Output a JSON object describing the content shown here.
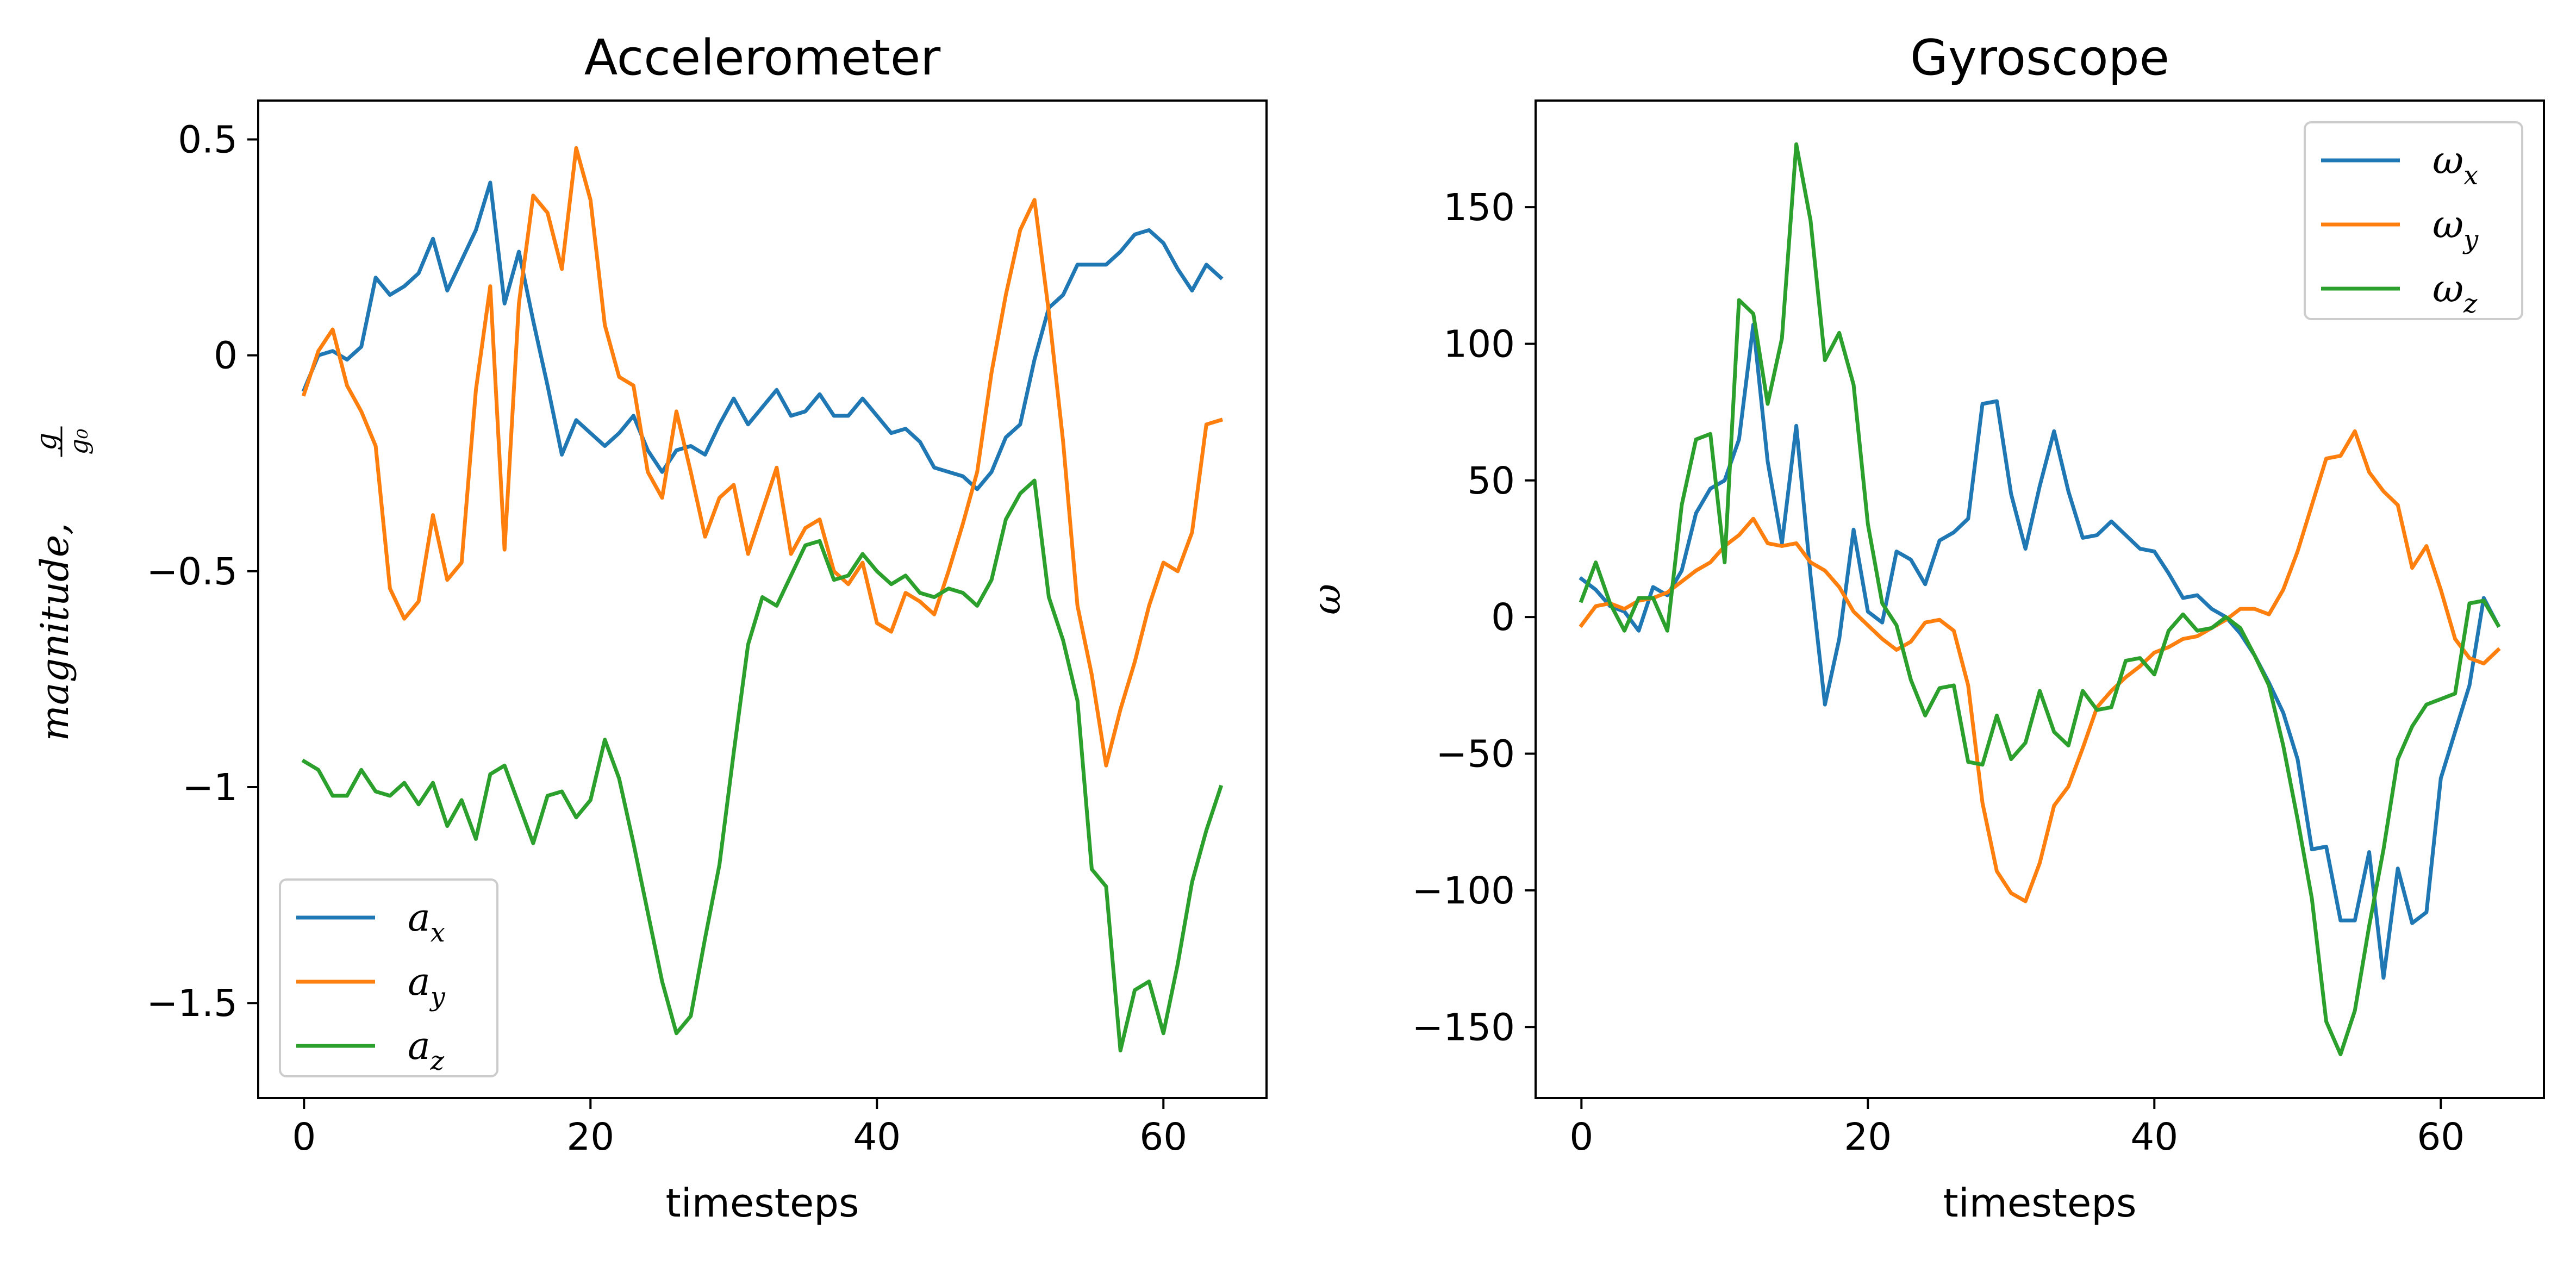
{
  "chart_data": [
    {
      "type": "line",
      "title": "Accelerometer",
      "xlabel": "timesteps",
      "ylabel": "magnitude, g/g₀",
      "xlim": [
        -3.2,
        67.2
      ],
      "ylim": [
        -1.72,
        0.59
      ],
      "xticks": [
        0,
        20,
        40,
        60
      ],
      "yticks": [
        0.5,
        0.0,
        -0.5,
        -1.0,
        -1.5
      ],
      "grid": false,
      "legend_position": "lower-left",
      "series": [
        {
          "name": "a_x",
          "name_base": "a",
          "name_sub": "x",
          "color": "#1f77b4",
          "values": [
            -0.08,
            0.0,
            0.01,
            -0.01,
            0.02,
            0.18,
            0.14,
            0.16,
            0.19,
            0.27,
            0.15,
            0.22,
            0.29,
            0.4,
            0.12,
            0.24,
            0.08,
            -0.07,
            -0.23,
            -0.15,
            -0.18,
            -0.21,
            -0.18,
            -0.14,
            -0.22,
            -0.27,
            -0.22,
            -0.21,
            -0.23,
            -0.16,
            -0.1,
            -0.16,
            -0.12,
            -0.08,
            -0.14,
            -0.13,
            -0.09,
            -0.14,
            -0.14,
            -0.1,
            -0.14,
            -0.18,
            -0.17,
            -0.2,
            -0.26,
            -0.27,
            -0.28,
            -0.31,
            -0.27,
            -0.19,
            -0.16,
            -0.01,
            0.11,
            0.14,
            0.21,
            0.21,
            0.21,
            0.24,
            0.28,
            0.29,
            0.26,
            0.2,
            0.15,
            0.21,
            0.18
          ]
        },
        {
          "name": "a_y",
          "name_base": "a",
          "name_sub": "y",
          "color": "#ff7f0e",
          "values": [
            -0.09,
            0.01,
            0.06,
            -0.07,
            -0.13,
            -0.21,
            -0.54,
            -0.61,
            -0.57,
            -0.37,
            -0.52,
            -0.48,
            -0.08,
            0.16,
            -0.45,
            0.12,
            0.37,
            0.33,
            0.2,
            0.48,
            0.36,
            0.07,
            -0.05,
            -0.07,
            -0.27,
            -0.33,
            -0.13,
            -0.27,
            -0.42,
            -0.33,
            -0.3,
            -0.46,
            -0.36,
            -0.26,
            -0.46,
            -0.4,
            -0.38,
            -0.5,
            -0.53,
            -0.48,
            -0.62,
            -0.64,
            -0.55,
            -0.57,
            -0.6,
            -0.5,
            -0.39,
            -0.27,
            -0.04,
            0.14,
            0.29,
            0.36,
            0.1,
            -0.2,
            -0.58,
            -0.74,
            -0.95,
            -0.82,
            -0.71,
            -0.58,
            -0.48,
            -0.5,
            -0.41,
            -0.16,
            -0.15
          ]
        },
        {
          "name": "a_z",
          "name_base": "a",
          "name_sub": "z",
          "color": "#2ca02c",
          "values": [
            -0.94,
            -0.96,
            -1.02,
            -1.02,
            -0.96,
            -1.01,
            -1.02,
            -0.99,
            -1.04,
            -0.99,
            -1.09,
            -1.03,
            -1.12,
            -0.97,
            -0.95,
            -1.04,
            -1.13,
            -1.02,
            -1.01,
            -1.07,
            -1.03,
            -0.89,
            -0.98,
            -1.13,
            -1.29,
            -1.45,
            -1.57,
            -1.53,
            -1.35,
            -1.18,
            -0.92,
            -0.67,
            -0.56,
            -0.58,
            -0.51,
            -0.44,
            -0.43,
            -0.52,
            -0.51,
            -0.46,
            -0.5,
            -0.53,
            -0.51,
            -0.55,
            -0.56,
            -0.54,
            -0.55,
            -0.58,
            -0.52,
            -0.38,
            -0.32,
            -0.29,
            -0.56,
            -0.66,
            -0.8,
            -1.19,
            -1.23,
            -1.61,
            -1.47,
            -1.45,
            -1.57,
            -1.41,
            -1.22,
            -1.1,
            -1.0
          ]
        }
      ]
    },
    {
      "type": "line",
      "title": "Gyroscope",
      "xlabel": "timesteps",
      "ylabel": "ω",
      "xlim": [
        -3.2,
        67.2
      ],
      "ylim": [
        -176,
        189
      ],
      "xticks": [
        0,
        20,
        40,
        60
      ],
      "yticks": [
        150,
        100,
        50,
        0,
        -50,
        -100,
        -150
      ],
      "grid": false,
      "legend_position": "upper-right",
      "series": [
        {
          "name": "ω_x",
          "name_base": "ω",
          "name_sub": "x",
          "color": "#1f77b4",
          "values": [
            14,
            10,
            4,
            2,
            -5,
            11,
            8,
            17,
            38,
            47,
            50,
            65,
            107,
            57,
            27,
            70,
            15,
            -32,
            -8,
            32,
            2,
            -2,
            24,
            21,
            12,
            28,
            31,
            36,
            78,
            79,
            45,
            25,
            48,
            68,
            46,
            29,
            30,
            35,
            30,
            25,
            24,
            16,
            7,
            8,
            3,
            0,
            -6,
            -14,
            -24,
            -35,
            -52,
            -85,
            -84,
            -111,
            -111,
            -86,
            -132,
            -92,
            -112,
            -108,
            -59,
            -42,
            -25,
            7,
            -3
          ]
        },
        {
          "name": "ω_y",
          "name_base": "ω",
          "name_sub": "y",
          "color": "#ff7f0e",
          "values": [
            -3,
            4,
            5,
            3,
            6,
            7,
            9,
            13,
            17,
            20,
            26,
            30,
            36,
            27,
            26,
            27,
            20,
            17,
            11,
            2,
            -3,
            -8,
            -12,
            -9,
            -2,
            -1,
            -5,
            -25,
            -68,
            -93,
            -101,
            -104,
            -90,
            -69,
            -62,
            -48,
            -33,
            -27,
            -22,
            -18,
            -13,
            -11,
            -8,
            -7,
            -4,
            -1,
            3,
            3,
            1,
            10,
            24,
            41,
            58,
            59,
            68,
            53,
            46,
            41,
            18,
            26,
            10,
            -8,
            -15,
            -17,
            -12
          ]
        },
        {
          "name": "ω_z",
          "name_base": "ω",
          "name_sub": "z",
          "color": "#2ca02c",
          "values": [
            6,
            20,
            5,
            -5,
            7,
            7,
            -5,
            41,
            65,
            67,
            20,
            116,
            111,
            78,
            102,
            173,
            145,
            94,
            104,
            85,
            34,
            5,
            -3,
            -23,
            -36,
            -26,
            -25,
            -53,
            -54,
            -36,
            -52,
            -46,
            -27,
            -42,
            -47,
            -27,
            -34,
            -33,
            -16,
            -15,
            -21,
            -5,
            1,
            -5,
            -4,
            0,
            -4,
            -14,
            -25,
            -47,
            -74,
            -103,
            -148,
            -160,
            -144,
            -113,
            -85,
            -52,
            -40,
            -32,
            -30,
            -28,
            5,
            6,
            -3
          ]
        }
      ]
    }
  ]
}
